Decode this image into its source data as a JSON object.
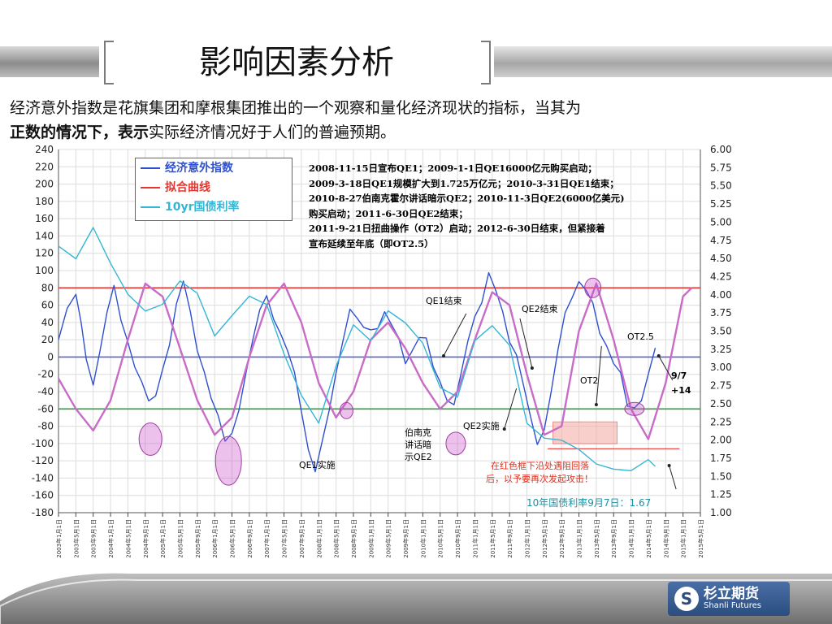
{
  "slide": {
    "title": "影响因素分析",
    "desc_part1": "经济意外指数是花旗集团和摩根集团推出的一个观察和量化经济现状的指标，当其为",
    "desc_bold1": "正数的情况下，",
    "desc_bold2": "表示",
    "desc_part2": "实际经济情况好于人们的普遍预期。",
    "logo_cn": "杉立期货",
    "logo_en": "Shanli Futures"
  },
  "colors": {
    "surprise": "#2e4fd1",
    "fit": "#e8342e",
    "yield": "#33b7d6",
    "sine": "#c86cc8",
    "zero": "#5a66c8",
    "upper": "#e8342e",
    "lower": "#2f9d3b",
    "grid": "#dcdcdc",
    "box": "#f4a9a0"
  },
  "chart_data": {
    "type": "line",
    "y_left": {
      "min": -180,
      "max": 240,
      "ticks": [
        "240",
        "220",
        "200",
        "180",
        "160",
        "140",
        "120",
        "100",
        "80",
        "60",
        "40",
        "20",
        "0",
        "-20",
        "-40",
        "-60",
        "-80",
        "-100",
        "-120",
        "-140",
        "-160",
        "-180"
      ]
    },
    "y_right": {
      "min": 1.0,
      "max": 6.0,
      "ticks": [
        "6.00",
        "5.75",
        "5.50",
        "5.25",
        "5.00",
        "4.75",
        "4.50",
        "4.25",
        "4.00",
        "3.75",
        "3.50",
        "3.25",
        "3.00",
        "2.75",
        "2.50",
        "2.25",
        "2.00",
        "1.75",
        "1.50",
        "1.25",
        "1.00"
      ]
    },
    "x_ticks": [
      "2003年1月1日",
      "2003年5月1日",
      "2003年9月1日",
      "2004年1月1日",
      "2004年5月1日",
      "2004年9月1日",
      "2005年1月1日",
      "2005年5月1日",
      "2005年9月1日",
      "2006年1月1日",
      "2006年5月1日",
      "2006年9月1日",
      "2007年1月1日",
      "2007年5月1日",
      "2007年9月1日",
      "2008年1月1日",
      "2008年5月1日",
      "2008年9月1日",
      "2009年1月1日",
      "2009年5月1日",
      "2009年9月1日",
      "2010年1月1日",
      "2010年5月1日",
      "2010年9月1日",
      "2011年1月1日",
      "2011年5月1日",
      "2011年9月1日",
      "2012年1月1日",
      "2012年5月1日",
      "2012年9月1日",
      "2013年1月1日",
      "2013年5月1日",
      "2013年9月1日",
      "2014年1月1日",
      "2014年5月1日",
      "2014年9月1日",
      "2015年1月1日",
      "2015年5月1日"
    ],
    "legend": [
      "经济意外指数",
      "拟合曲线",
      "10yr国债利率"
    ],
    "hlines": [
      {
        "y": 80,
        "color": "red"
      },
      {
        "y": -60,
        "color": "green"
      },
      {
        "y": 0,
        "color": "blue"
      }
    ],
    "series": [
      {
        "name": "经济意外指数",
        "axis": "left",
        "points": [
          [
            0,
            20
          ],
          [
            0.5,
            55
          ],
          [
            1,
            75
          ],
          [
            1.3,
            40
          ],
          [
            1.6,
            -5
          ],
          [
            2,
            -30
          ],
          [
            2.4,
            5
          ],
          [
            2.8,
            55
          ],
          [
            3.2,
            80
          ],
          [
            3.6,
            45
          ],
          [
            4,
            15
          ],
          [
            4.4,
            -10
          ],
          [
            4.8,
            -30
          ],
          [
            5.2,
            -50
          ],
          [
            5.6,
            -45
          ],
          [
            6,
            -15
          ],
          [
            6.4,
            15
          ],
          [
            6.8,
            60
          ],
          [
            7.2,
            90
          ],
          [
            7.6,
            50
          ],
          [
            8,
            10
          ],
          [
            8.4,
            -20
          ],
          [
            8.8,
            -45
          ],
          [
            9.2,
            -70
          ],
          [
            9.6,
            -95
          ],
          [
            10,
            -90
          ],
          [
            10.4,
            -60
          ],
          [
            10.8,
            -20
          ],
          [
            11.2,
            20
          ],
          [
            11.6,
            55
          ],
          [
            12,
            70
          ],
          [
            12.4,
            45
          ],
          [
            12.8,
            25
          ],
          [
            13.2,
            10
          ],
          [
            13.6,
            -20
          ],
          [
            14,
            -60
          ],
          [
            14.4,
            -110
          ],
          [
            14.8,
            -130
          ],
          [
            15.2,
            -100
          ],
          [
            15.6,
            -60
          ],
          [
            16,
            -20
          ],
          [
            16.4,
            20
          ],
          [
            16.8,
            55
          ],
          [
            17.2,
            45
          ],
          [
            17.6,
            35
          ],
          [
            18,
            30
          ],
          [
            18.4,
            35
          ],
          [
            18.8,
            50
          ],
          [
            19.2,
            40
          ],
          [
            19.6,
            20
          ],
          [
            20,
            -5
          ],
          [
            20.4,
            5
          ],
          [
            20.8,
            25
          ],
          [
            21.2,
            20
          ],
          [
            21.6,
            -10
          ],
          [
            22,
            -30
          ],
          [
            22.4,
            -50
          ],
          [
            22.8,
            -55
          ],
          [
            23.2,
            -20
          ],
          [
            23.6,
            20
          ],
          [
            24,
            45
          ],
          [
            24.4,
            65
          ],
          [
            24.8,
            95
          ],
          [
            25.2,
            80
          ],
          [
            25.6,
            50
          ],
          [
            26,
            20
          ],
          [
            26.4,
            0
          ],
          [
            26.8,
            -30
          ],
          [
            27.2,
            -70
          ],
          [
            27.6,
            -100
          ],
          [
            28,
            -85
          ],
          [
            28.4,
            -40
          ],
          [
            28.8,
            10
          ],
          [
            29.2,
            50
          ],
          [
            29.6,
            70
          ],
          [
            30,
            85
          ],
          [
            30.4,
            80
          ],
          [
            30.8,
            60
          ],
          [
            31.2,
            30
          ],
          [
            31.6,
            10
          ],
          [
            32,
            -5
          ],
          [
            32.4,
            -20
          ],
          [
            32.8,
            -55
          ],
          [
            33.2,
            -60
          ],
          [
            33.6,
            -50
          ],
          [
            34,
            -20
          ],
          [
            34.4,
            10
          ]
        ]
      },
      {
        "name": "拟合曲线",
        "axis": "left",
        "points": [
          [
            0,
            -25
          ],
          [
            1,
            -60
          ],
          [
            2,
            -85
          ],
          [
            3,
            -50
          ],
          [
            4,
            20
          ],
          [
            5,
            85
          ],
          [
            6,
            70
          ],
          [
            7,
            10
          ],
          [
            8,
            -50
          ],
          [
            9,
            -90
          ],
          [
            10,
            -70
          ],
          [
            11,
            0
          ],
          [
            12,
            60
          ],
          [
            13,
            85
          ],
          [
            14,
            40
          ],
          [
            15,
            -30
          ],
          [
            16,
            -70
          ],
          [
            17,
            -40
          ],
          [
            18,
            20
          ],
          [
            19,
            40
          ],
          [
            20,
            10
          ],
          [
            21,
            -30
          ],
          [
            22,
            -60
          ],
          [
            23,
            -40
          ],
          [
            24,
            20
          ],
          [
            25,
            75
          ],
          [
            26,
            60
          ],
          [
            27,
            -20
          ],
          [
            28,
            -90
          ],
          [
            29,
            -80
          ],
          [
            30,
            30
          ],
          [
            31,
            85
          ],
          [
            32,
            20
          ],
          [
            33,
            -60
          ],
          [
            34,
            -95
          ],
          [
            35,
            -30
          ],
          [
            36,
            70
          ],
          [
            36.5,
            80
          ]
        ]
      },
      {
        "name": "10yr国债利率",
        "axis": "right",
        "points": [
          [
            0,
            4.7
          ],
          [
            1,
            4.5
          ],
          [
            2,
            4.9
          ],
          [
            3,
            4.4
          ],
          [
            4,
            4.0
          ],
          [
            5,
            3.8
          ],
          [
            6,
            3.9
          ],
          [
            7,
            4.2
          ],
          [
            8,
            4.0
          ],
          [
            9,
            3.4
          ],
          [
            10,
            3.7
          ],
          [
            11,
            4.0
          ],
          [
            12,
            3.9
          ],
          [
            13,
            3.2
          ],
          [
            14,
            2.6
          ],
          [
            15,
            2.2
          ],
          [
            16,
            3.0
          ],
          [
            17,
            3.6
          ],
          [
            18,
            3.4
          ],
          [
            19,
            3.8
          ],
          [
            20,
            3.6
          ],
          [
            21,
            3.3
          ],
          [
            22,
            2.7
          ],
          [
            23,
            2.6
          ],
          [
            24,
            3.4
          ],
          [
            25,
            3.6
          ],
          [
            26,
            3.3
          ],
          [
            27,
            2.2
          ],
          [
            28,
            2.0
          ],
          [
            29,
            2.0
          ],
          [
            30,
            1.9
          ],
          [
            31,
            1.7
          ],
          [
            32,
            1.6
          ],
          [
            33,
            1.55
          ],
          [
            34,
            1.7
          ],
          [
            34.4,
            1.67
          ]
        ]
      }
    ]
  },
  "legend_items": [
    "经济意外指数",
    "拟合曲线",
    "10yr国债利率"
  ],
  "notes": [
    "2008-11-15日宣布QE1；2009-1-1日QE16000亿元购买启动；",
    "2009-3-18日QE1规模扩大到1.725万亿元；2010-3-31日QE1结束；",
    "2010-8-27伯南克霍尔讲话暗示QE2；2010-11-3日QE2(6000亿美元)",
    "购买启动；2011-6-30日QE2结束；",
    "2011-9-21日扭曲操作（OT2）启动；2012-6-30日结束，但紧接着",
    "宣布延续至年底（即OT2.5）"
  ],
  "annotations": {
    "qe1_end": "QE1结束",
    "qe2_end": "QE2结束",
    "ot25": "OT2.5",
    "ot2": "OT2",
    "sep7": "9/7",
    "plus14": "+14",
    "bernanke_1": "伯南克",
    "bernanke_2": "讲话暗",
    "bernanke_3": "示QE2",
    "qe2_impl": "QE2实施",
    "qe1_impl": "QE1实施",
    "red_1": "在红色框下沿处遇阻回落",
    "red_2": "后，以予要再次发起攻击！",
    "yield_note": "10年国债利率9月7日：1.67"
  }
}
